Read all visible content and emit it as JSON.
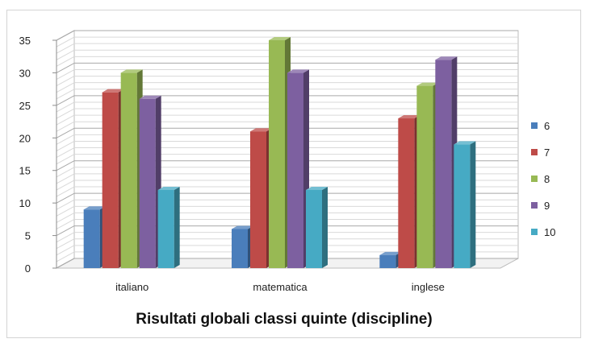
{
  "chart_data": {
    "type": "bar",
    "title": "Risultati globali classi quinte (discipline)",
    "categories": [
      "italiano",
      "matematica",
      "inglese"
    ],
    "series": [
      {
        "name": "6",
        "values": [
          9,
          6,
          2
        ]
      },
      {
        "name": "7",
        "values": [
          27,
          21,
          23
        ]
      },
      {
        "name": "8",
        "values": [
          30,
          35,
          28
        ]
      },
      {
        "name": "9",
        "values": [
          26,
          30,
          32
        ]
      },
      {
        "name": "10",
        "values": [
          12,
          12,
          19
        ]
      }
    ],
    "ylim": [
      0,
      35
    ],
    "yticks": [
      "0",
      "5",
      "10",
      "15",
      "20",
      "25",
      "30",
      "35"
    ],
    "grid": true,
    "legend_position": "right",
    "colors": {
      "6": "#4a7ebb",
      "7": "#be4b48",
      "8": "#98b954",
      "9": "#7d60a0",
      "10": "#46aac4"
    }
  }
}
